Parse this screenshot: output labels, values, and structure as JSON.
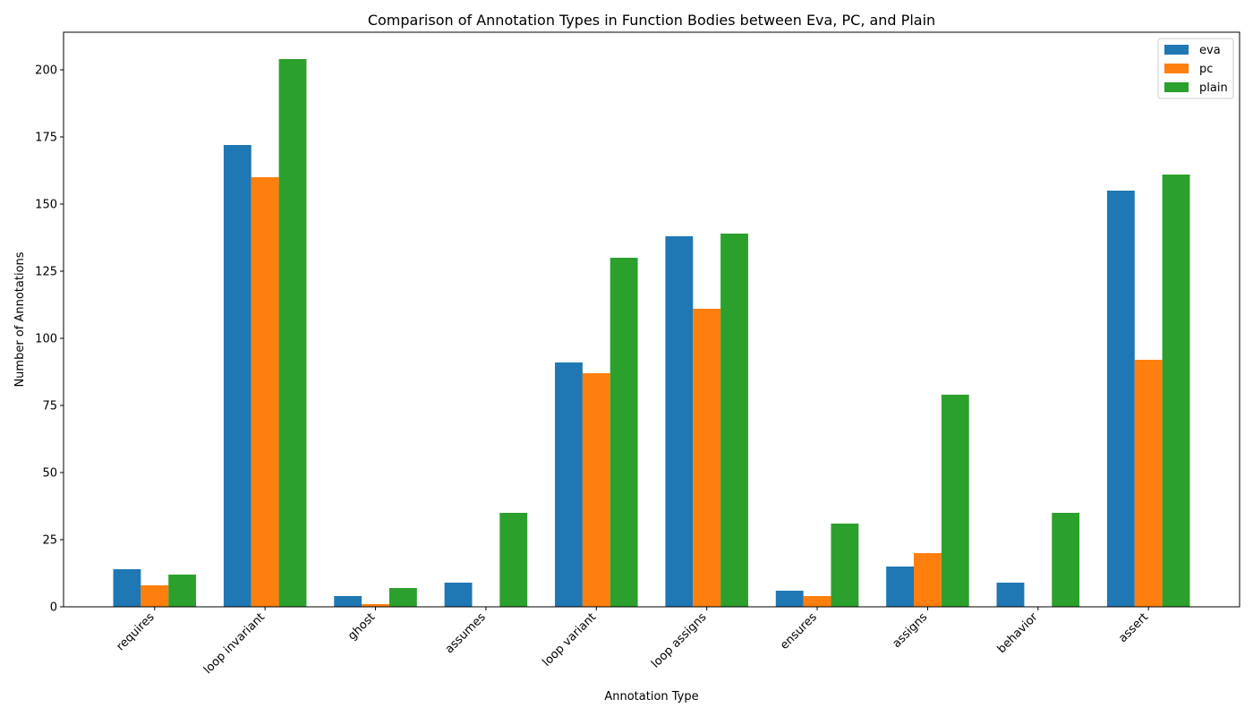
{
  "chart_data": {
    "type": "bar",
    "title": "Comparison of Annotation Types in Function Bodies between Eva, PC, and Plain",
    "xlabel": "Annotation Type",
    "ylabel": "Number of Annotations",
    "categories": [
      "requires",
      "loop invariant",
      "ghost",
      "assumes",
      "loop variant",
      "loop assigns",
      "ensures",
      "assigns",
      "behavior",
      "assert"
    ],
    "series": [
      {
        "name": "eva",
        "color": "#1f77b4",
        "values": [
          14,
          172,
          4,
          9,
          91,
          138,
          6,
          15,
          9,
          155
        ]
      },
      {
        "name": "pc",
        "color": "#ff7f0e",
        "values": [
          8,
          160,
          1,
          0,
          87,
          111,
          4,
          20,
          0,
          92
        ]
      },
      {
        "name": "plain",
        "color": "#2ca02c",
        "values": [
          12,
          204,
          7,
          35,
          130,
          139,
          31,
          79,
          35,
          161
        ]
      }
    ],
    "ylim": [
      0,
      214
    ],
    "yticks": [
      0,
      25,
      50,
      75,
      100,
      125,
      150,
      175,
      200
    ],
    "grid": false,
    "legend_position": "top-right"
  }
}
